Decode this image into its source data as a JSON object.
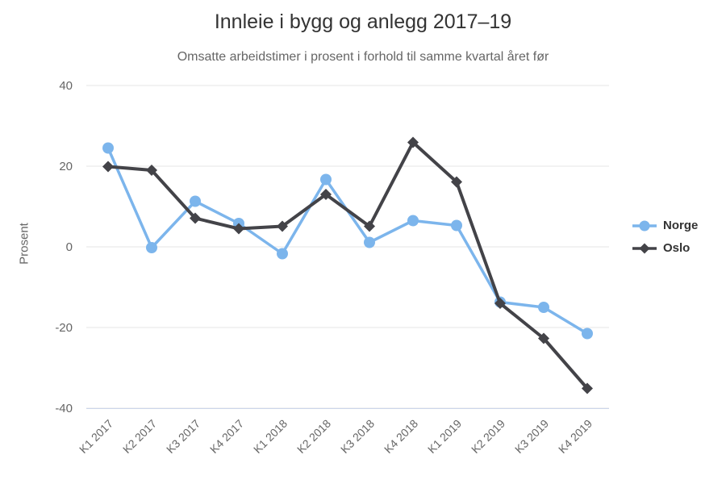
{
  "chart_data": {
    "type": "line",
    "title": "Innleie i bygg og anlegg 2017–19",
    "subtitle": "Omsatte arbeidstimer i prosent i forhold til samme kvartal året før",
    "xlabel": "",
    "ylabel": "Prosent",
    "ylim": [
      -40,
      40
    ],
    "yticks": [
      40,
      20,
      0,
      -20,
      -40
    ],
    "grid": true,
    "legend_position": "right",
    "categories": [
      "K1 2017",
      "K2 2017",
      "K3 2017",
      "K4 2017",
      "K1 2018",
      "K2 2018",
      "K3 2018",
      "K4 2018",
      "K1 2019",
      "K2 2019",
      "K3 2019",
      "K4 2019"
    ],
    "series": [
      {
        "name": "Norge",
        "color": "#7cb5ec",
        "marker": "circle",
        "values": [
          24.5,
          -0.2,
          11.3,
          5.8,
          -1.7,
          16.7,
          1.1,
          6.5,
          5.3,
          -13.7,
          -15.0,
          -21.5
        ]
      },
      {
        "name": "Oslo",
        "color": "#434348",
        "marker": "diamond",
        "values": [
          19.9,
          19.0,
          7.1,
          4.5,
          5.1,
          13.0,
          5.1,
          25.9,
          16.1,
          -14.0,
          -22.7,
          -35.1
        ]
      }
    ]
  },
  "colors": {
    "background": "#ffffff",
    "title-text": "#333333",
    "subtitle-text": "#666666",
    "tick-text": "#666666",
    "axis-title-text": "#666666",
    "legend-text": "#333333",
    "gridline": "#e6e6e6",
    "axis-line": "#ccd6eb"
  }
}
